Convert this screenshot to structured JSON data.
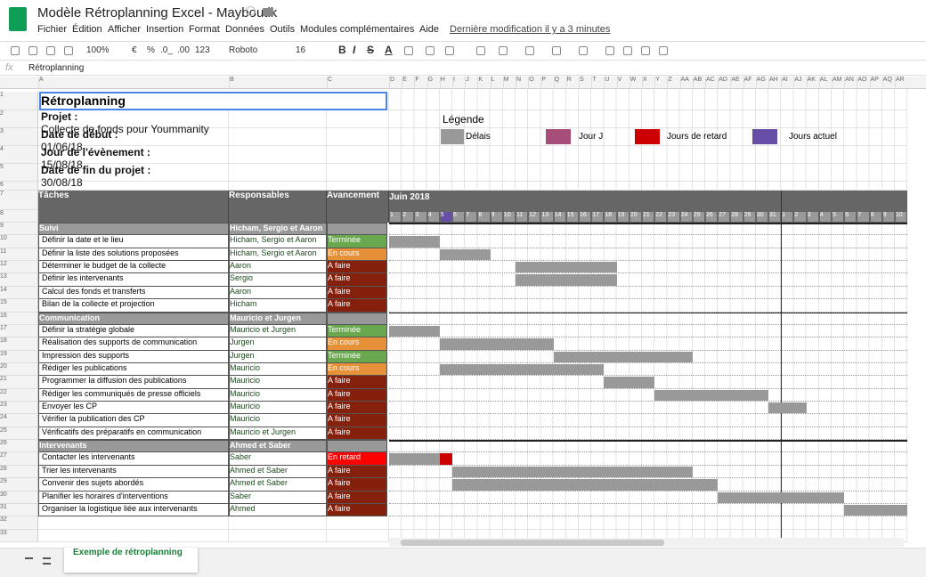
{
  "app": {
    "title": "Modèle Rétroplanning Excel - Mayboutik",
    "menus": [
      "Fichier",
      "Édition",
      "Afficher",
      "Insertion",
      "Format",
      "Données",
      "Outils",
      "Modules complémentaires",
      "Aide"
    ],
    "last_edit": "Dernière modification il y a 3 minutes"
  },
  "toolbar": {
    "zoom": "100%",
    "currency": "€",
    "percent": "%",
    "decimals_less": ".0_",
    "decimals_more": ".00",
    "number_format": "123",
    "font": "Roboto",
    "size": "16",
    "format_buttons": [
      "B",
      "I",
      "S",
      "A"
    ]
  },
  "formula_bar": {
    "label": "fx",
    "content": "Rétroplanning"
  },
  "columns": [
    "A",
    "B",
    "C",
    "D",
    "E",
    "F",
    "G",
    "H",
    "I",
    "J",
    "K",
    "L",
    "M",
    "N",
    "O",
    "P",
    "Q",
    "R",
    "S",
    "T",
    "U",
    "V",
    "W",
    "X",
    "Y",
    "Z",
    "AA",
    "AB",
    "AC",
    "AD",
    "AE",
    "AF",
    "AG",
    "AH",
    "AI",
    "AJ",
    "AK",
    "AL",
    "AM",
    "AN",
    "AO",
    "AP",
    "AQ",
    "AR"
  ],
  "row_numbers": [
    1,
    2,
    3,
    4,
    5,
    6,
    7,
    8,
    9,
    10,
    11,
    12,
    13,
    14,
    15,
    16,
    17,
    18,
    19,
    20,
    21,
    22,
    23,
    24,
    25,
    26,
    27,
    28,
    29,
    30,
    31,
    32,
    33
  ],
  "sheet": {
    "title": "Rétroplanning",
    "info": [
      {
        "label": "Projet :",
        "value": "Collecte de fonds pour Yoummanity"
      },
      {
        "label": "Date de début :",
        "value": "01/06/18"
      },
      {
        "label": "Jour de l'évènement :",
        "value": "15/08/18"
      },
      {
        "label": "Date de fin du projet :",
        "value": "30/08/18"
      }
    ],
    "legend": {
      "title": "Légende",
      "items": [
        {
          "label": "Délais",
          "color": "#999999"
        },
        {
          "label": "Jour J",
          "color": "#a64d79"
        },
        {
          "label": "Jours de retard",
          "color": "#cc0000"
        },
        {
          "label": "Jours actuel",
          "color": "#674ea7"
        }
      ]
    },
    "headers": {
      "task": "Tâches",
      "owner": "Responsables",
      "status": "Avancement"
    },
    "month": "Juin 2018",
    "days": [
      1,
      2,
      3,
      4,
      5,
      6,
      7,
      8,
      9,
      10,
      11,
      12,
      13,
      14,
      15,
      16,
      17,
      18,
      19,
      20,
      21,
      22,
      23,
      24,
      25,
      26,
      27,
      28,
      29,
      30,
      31,
      1,
      2,
      3,
      4,
      5,
      6,
      7,
      8,
      9,
      10
    ],
    "today_index": 4,
    "status_colors": {
      "Terminée": "#6aa84f",
      "En cours": "#e69138",
      "A faire": "#85200c",
      "En retard": "#ff0000"
    },
    "groups": [
      {
        "name": "Suivi",
        "owner": "Hicham, Sergio et Aaron",
        "tasks": [
          {
            "name": "Définir la date et le lieu",
            "owner": "Hicham, Sergio et Aaron",
            "status": "Terminée",
            "bars": [
              {
                "start": 1,
                "end": 4,
                "color": "#999999"
              }
            ]
          },
          {
            "name": "Définir la liste des solutions proposées",
            "owner": "Hicham, Sergio et Aaron",
            "status": "En cours",
            "bars": [
              {
                "start": 5,
                "end": 8,
                "color": "#999999"
              }
            ]
          },
          {
            "name": "Déterminer le budget de la collecte",
            "owner": "Aaron",
            "status": "A faire",
            "bars": [
              {
                "start": 11,
                "end": 18,
                "color": "#999999"
              }
            ]
          },
          {
            "name": "Définir les intervenants",
            "owner": "Sergio",
            "status": "A faire",
            "bars": [
              {
                "start": 11,
                "end": 18,
                "color": "#999999"
              }
            ]
          },
          {
            "name": "Calcul des fonds et transferts",
            "owner": "Aaron",
            "status": "A faire",
            "bars": []
          },
          {
            "name": "Bilan de la collecte et projection",
            "owner": "Hicham",
            "status": "A faire",
            "bars": []
          }
        ]
      },
      {
        "name": "Communication",
        "owner": "Mauricio et Jurgen",
        "tasks": [
          {
            "name": "Définir la stratégie globale",
            "owner": "Mauricio et Jurgen",
            "status": "Terminée",
            "bars": [
              {
                "start": 1,
                "end": 4,
                "color": "#999999"
              }
            ]
          },
          {
            "name": "Réalisation des supports de communication",
            "owner": "Jurgen",
            "status": "En cours",
            "bars": [
              {
                "start": 5,
                "end": 13,
                "color": "#999999"
              }
            ]
          },
          {
            "name": "Impression des supports",
            "owner": "Jurgen",
            "status": "Terminée",
            "bars": [
              {
                "start": 14,
                "end": 24,
                "color": "#999999"
              }
            ]
          },
          {
            "name": "Rédiger les publications",
            "owner": "Mauricio",
            "status": "En cours",
            "bars": [
              {
                "start": 5,
                "end": 17,
                "color": "#999999"
              }
            ]
          },
          {
            "name": "Programmer la diffusion des publications",
            "owner": "Mauricio",
            "status": "A faire",
            "bars": [
              {
                "start": 18,
                "end": 21,
                "color": "#999999"
              }
            ]
          },
          {
            "name": "Rédiger les communiqués de presse officiels",
            "owner": "Mauricio",
            "status": "A faire",
            "bars": [
              {
                "start": 22,
                "end": 30,
                "color": "#999999"
              }
            ]
          },
          {
            "name": "Envoyer les CP",
            "owner": "Mauricio",
            "status": "A faire",
            "bars": [
              {
                "start": 31,
                "end": 33,
                "color": "#999999"
              }
            ]
          },
          {
            "name": "Vérifier la publication des CP",
            "owner": "Mauricio",
            "status": "A faire",
            "bars": []
          },
          {
            "name": "Vérificatifs des préparatifs en communication",
            "owner": "Mauricio et Jurgen",
            "status": "A faire",
            "bars": []
          }
        ]
      },
      {
        "name": "Intervenants",
        "owner": "Ahmed et Saber",
        "tasks": [
          {
            "name": "Contacter les intervenants",
            "owner": "Saber",
            "status": "En retard",
            "bars": [
              {
                "start": 1,
                "end": 4,
                "color": "#999999"
              },
              {
                "start": 5,
                "end": 5,
                "color": "#cc0000"
              }
            ]
          },
          {
            "name": "Trier les intervenants",
            "owner": "Ahmed et Saber",
            "status": "A faire",
            "bars": [
              {
                "start": 6,
                "end": 24,
                "color": "#999999"
              }
            ]
          },
          {
            "name": "Convenir des sujets abordés",
            "owner": "Ahmed et Saber",
            "status": "A faire",
            "bars": [
              {
                "start": 6,
                "end": 26,
                "color": "#999999"
              }
            ]
          },
          {
            "name": "Planifier les horaires d'interventions",
            "owner": "Saber",
            "status": "A faire",
            "bars": [
              {
                "start": 27,
                "end": 36,
                "color": "#999999"
              }
            ]
          },
          {
            "name": "Organiser la logistique liée aux intervenants",
            "owner": "Ahmed",
            "status": "A faire",
            "bars": [
              {
                "start": 37,
                "end": 41,
                "color": "#999999"
              }
            ]
          }
        ]
      }
    ]
  },
  "tab": {
    "name": "Exemple de rétroplanning"
  }
}
